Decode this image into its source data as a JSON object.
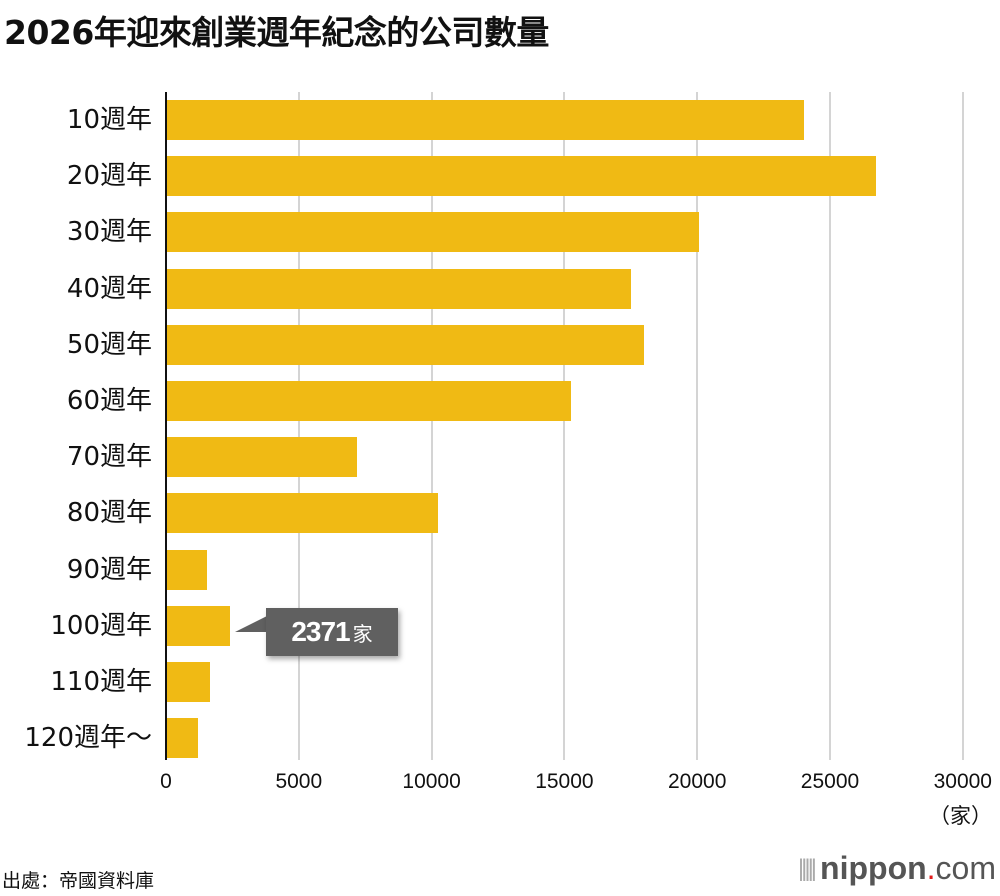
{
  "title": "2026年迎來創業週年紀念的公司數量",
  "chart_data": {
    "type": "bar",
    "orientation": "horizontal",
    "title": "2026年迎來創業週年紀念的公司數量",
    "categories": [
      "10週年",
      "20週年",
      "30週年",
      "40週年",
      "50週年",
      "60週年",
      "70週年",
      "80週年",
      "90週年",
      "100週年",
      "110週年",
      "120週年～"
    ],
    "values": [
      23980,
      26690,
      20030,
      17470,
      17960,
      15210,
      7150,
      10200,
      1510,
      2371,
      1620,
      1170
    ],
    "xlabel": "（家）",
    "ylabel": "",
    "xlim": [
      0,
      30000
    ],
    "xticks": [
      "0",
      "5000",
      "10000",
      "15000",
      "20000",
      "25000",
      "30000"
    ],
    "grid": true,
    "bar_color": "#f0ba14",
    "annotations": [
      {
        "category": "100週年",
        "value_text": "2371",
        "unit": "家"
      }
    ]
  },
  "axis": {
    "unit": "（家）"
  },
  "callout": {
    "value": "2371",
    "unit": "家"
  },
  "footer": {
    "source": "出處：帝國資料庫",
    "logo_main": "nippon",
    "logo_dot": ".",
    "logo_tail": "com"
  }
}
